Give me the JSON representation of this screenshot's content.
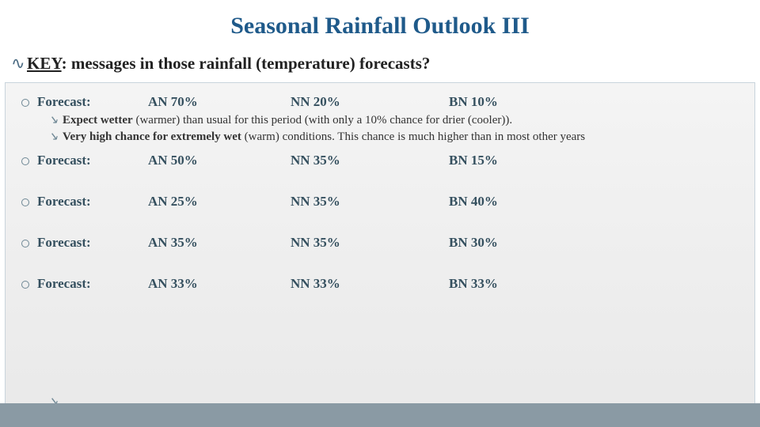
{
  "colors": {
    "title": "#1f5a8a",
    "body_text": "#2a3a44",
    "forecast_text": "#35505f",
    "bullet_ring": "#6f8895",
    "frame_border": "#c9d4dc",
    "frame_bg_top": "#f4f4f4",
    "frame_bg_bottom": "#e9e9e9",
    "bottom_band": "#8a9aa4",
    "page_bg": "#ffffff"
  },
  "typography": {
    "title_fontsize": 30,
    "key_fontsize": 21,
    "forecast_fontsize": 17,
    "sub_fontsize": 15,
    "font_family": "Georgia, serif"
  },
  "title": "Seasonal Rainfall Outlook III",
  "key": {
    "prefix": "KEY",
    "rest": ": messages in those rainfall (temperature) forecasts?"
  },
  "forecasts": [
    {
      "label": "Forecast:",
      "an": "AN 70%",
      "nn": "NN 20%",
      "bn": "BN 10%",
      "notes": [
        {
          "bold_lead": "Expect wetter",
          "rest": " (warmer) than usual for this period (with only a 10% chance for drier (cooler))."
        },
        {
          "bold_lead": "Very high chance for extremely wet",
          "rest": " (warm) conditions. This chance is much higher than in most other years"
        }
      ]
    },
    {
      "label": "Forecast:",
      "an": "AN 50%",
      "nn": "NN 35%",
      "bn": "BN 15%"
    },
    {
      "label": "Forecast:",
      "an": "AN 25%",
      "nn": "NN 35%",
      "bn": "BN 40%"
    },
    {
      "label": "Forecast:",
      "an": "AN 35%",
      "nn": "NN 35%",
      "bn": "BN 30%"
    },
    {
      "label": "Forecast:",
      "an": "AN 33%",
      "nn": "NN 33%",
      "bn": "BN 33%"
    }
  ]
}
